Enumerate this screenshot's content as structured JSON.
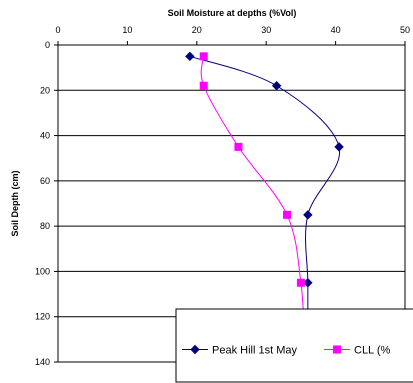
{
  "chart_data": {
    "type": "line",
    "title": "Soil Moisture at depths  (%Vol)",
    "xlabel": "",
    "ylabel": "Soil Depth (cm)",
    "xlim": [
      0,
      50
    ],
    "ylim": [
      0,
      140
    ],
    "y_inverted": true,
    "x_axis_position": "top",
    "x_ticks": [
      "0",
      "10",
      "20",
      "30",
      "40",
      "50"
    ],
    "y_ticks": [
      "0",
      "20",
      "40",
      "60",
      "80",
      "100",
      "120",
      "140"
    ],
    "grid": "horizontal",
    "legend_placement": "bottom-right",
    "series": [
      {
        "name": "Peak Hill 1st May",
        "color": "#000080",
        "marker": "diamond",
        "points": [
          {
            "x": 19.0,
            "y": 5
          },
          {
            "x": 31.5,
            "y": 18
          },
          {
            "x": 40.5,
            "y": 45
          },
          {
            "x": 36.0,
            "y": 75
          },
          {
            "x": 36.0,
            "y": 105
          },
          {
            "x": 36.0,
            "y": 130
          }
        ]
      },
      {
        "name": "CLL (%",
        "color": "#ff00ff",
        "marker": "square",
        "points": [
          {
            "x": 21.0,
            "y": 5
          },
          {
            "x": 21.0,
            "y": 18
          },
          {
            "x": 26.0,
            "y": 45
          },
          {
            "x": 33.0,
            "y": 75
          },
          {
            "x": 35.0,
            "y": 105
          },
          {
            "x": 35.5,
            "y": 130
          }
        ]
      }
    ]
  }
}
